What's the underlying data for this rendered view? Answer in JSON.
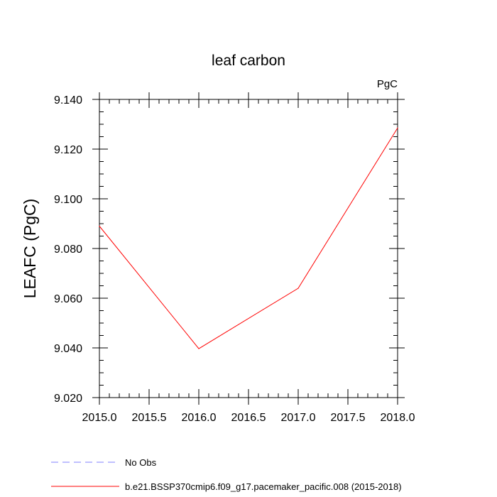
{
  "chart_data": {
    "type": "line",
    "title": "leaf carbon",
    "units": "PgC",
    "xlabel": "",
    "ylabel": "LEAFC  (PgC)",
    "xlim": [
      2015.0,
      2018.0
    ],
    "ylim": [
      9.02,
      9.14
    ],
    "x_ticks": [
      "2015.0",
      "2015.5",
      "2016.0",
      "2016.5",
      "2017.0",
      "2017.5",
      "2018.0"
    ],
    "x_tick_values": [
      2015.0,
      2015.5,
      2016.0,
      2016.5,
      2017.0,
      2017.5,
      2018.0
    ],
    "y_ticks": [
      "9.020",
      "9.040",
      "9.060",
      "9.080",
      "9.100",
      "9.120",
      "9.140"
    ],
    "y_tick_values": [
      9.02,
      9.04,
      9.06,
      9.08,
      9.1,
      9.12,
      9.14
    ],
    "grid": false,
    "legend_position": "bottom",
    "series": [
      {
        "name": "b.e21.BSSP370cmip6.f09_g17.pacemaker_pacific.008 (2015-2018)",
        "color": "#ff0000",
        "dash": "solid",
        "x": [
          2015.0,
          2016.0,
          2017.0,
          2018.0
        ],
        "y": [
          9.089,
          9.0397,
          9.064,
          9.1285
        ]
      }
    ],
    "legend": [
      {
        "label": "No Obs",
        "color": "#8080ff",
        "dash": "dashed"
      },
      {
        "label": "b.e21.BSSP370cmip6.f09_g17.pacemaker_pacific.008 (2015-2018)",
        "color": "#ff0000",
        "dash": "solid"
      }
    ]
  }
}
